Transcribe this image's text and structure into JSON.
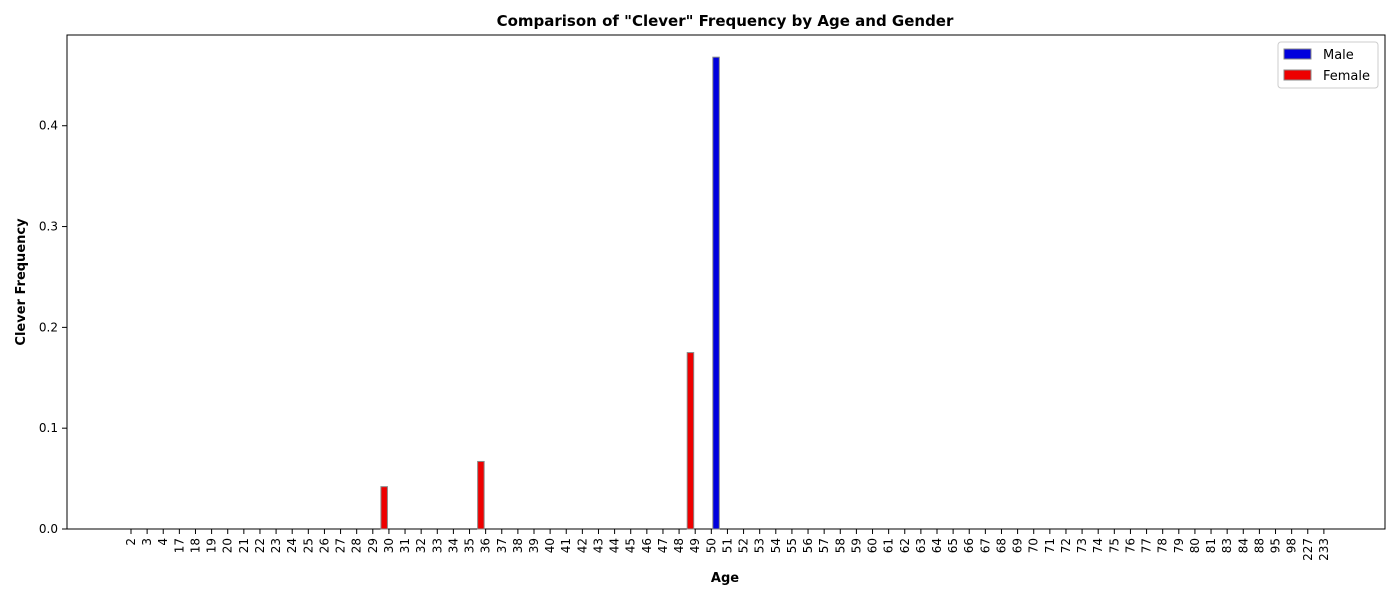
{
  "chart_data": {
    "type": "bar",
    "title": "Comparison of \"Clever\" Frequency by Age and Gender",
    "xlabel": "Age",
    "ylabel": "Clever Frequency",
    "categories": [
      "2",
      "3",
      "4",
      "17",
      "18",
      "19",
      "20",
      "21",
      "22",
      "23",
      "24",
      "25",
      "26",
      "27",
      "28",
      "29",
      "30",
      "31",
      "32",
      "33",
      "34",
      "35",
      "36",
      "37",
      "38",
      "39",
      "40",
      "41",
      "42",
      "43",
      "44",
      "45",
      "46",
      "47",
      "48",
      "49",
      "50",
      "51",
      "52",
      "53",
      "54",
      "55",
      "56",
      "57",
      "58",
      "59",
      "60",
      "61",
      "62",
      "63",
      "64",
      "65",
      "66",
      "67",
      "68",
      "69",
      "70",
      "71",
      "72",
      "73",
      "74",
      "75",
      "76",
      "77",
      "78",
      "79",
      "80",
      "81",
      "83",
      "84",
      "88",
      "95",
      "98",
      "227",
      "233"
    ],
    "series": [
      {
        "name": "Male",
        "color": "#0000dd",
        "values": [
          0,
          0,
          0,
          0,
          0,
          0,
          0,
          0,
          0,
          0,
          0,
          0,
          0,
          0,
          0,
          0,
          0,
          0,
          0,
          0,
          0,
          0,
          0,
          0,
          0,
          0,
          0,
          0,
          0,
          0,
          0,
          0,
          0,
          0,
          0,
          0,
          0.468,
          0,
          0,
          0,
          0,
          0,
          0,
          0,
          0,
          0,
          0,
          0,
          0,
          0,
          0,
          0,
          0,
          0,
          0,
          0,
          0,
          0,
          0,
          0,
          0,
          0,
          0,
          0,
          0,
          0,
          0,
          0,
          0,
          0,
          0,
          0,
          0,
          0,
          0
        ]
      },
      {
        "name": "Female",
        "color": "#ee0000",
        "values": [
          0,
          0,
          0,
          0,
          0,
          0,
          0,
          0,
          0,
          0,
          0,
          0,
          0,
          0,
          0,
          0,
          0.042,
          0,
          0,
          0,
          0,
          0,
          0.067,
          0,
          0,
          0,
          0,
          0,
          0,
          0,
          0,
          0,
          0,
          0,
          0,
          0.175,
          0,
          0,
          0,
          0,
          0,
          0,
          0,
          0,
          0,
          0,
          0,
          0,
          0,
          0,
          0,
          0,
          0,
          0,
          0,
          0,
          0,
          0,
          0,
          0,
          0,
          0,
          0,
          0,
          0,
          0,
          0,
          0,
          0,
          0,
          0,
          0,
          0,
          0,
          0
        ]
      }
    ],
    "yticks": [
      "0.0",
      "0.1",
      "0.2",
      "0.3",
      "0.4"
    ],
    "ylim": [
      0,
      0.49
    ],
    "grid": false,
    "legend": "top-right"
  }
}
